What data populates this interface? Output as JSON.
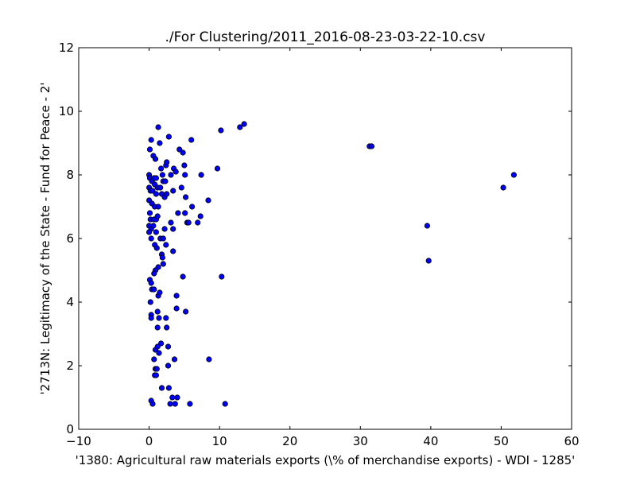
{
  "chart_data": {
    "type": "scatter",
    "title": "./For Clustering/2011_2016-08-23-03-22-10.csv",
    "xlabel": "'1380: Agricultural raw materials exports  (\\% of merchandise exports) - WDI - 1285'",
    "ylabel": "'2713N: Legitimacy of the State - Fund for Peace - 2'",
    "xlim": [
      -10,
      60
    ],
    "ylim": [
      0,
      12
    ],
    "xticks": [
      "−10",
      "0",
      "10",
      "20",
      "30",
      "40",
      "50",
      "60"
    ],
    "yticks": [
      "0",
      "2",
      "4",
      "6",
      "8",
      "10",
      "12"
    ],
    "grid": false,
    "legend": "none",
    "marker_color": "#0000ff",
    "marker_edge": "#000000",
    "points": [
      [
        1.3,
        9.5
      ],
      [
        0.3,
        9.1
      ],
      [
        1.5,
        9.0
      ],
      [
        2.8,
        9.2
      ],
      [
        0.1,
        8.8
      ],
      [
        0.6,
        8.6
      ],
      [
        0.9,
        8.5
      ],
      [
        4.3,
        8.8
      ],
      [
        4.8,
        8.7
      ],
      [
        6.0,
        9.1
      ],
      [
        10.2,
        9.4
      ],
      [
        12.9,
        9.5
      ],
      [
        13.5,
        9.6
      ],
      [
        31.3,
        8.9
      ],
      [
        31.6,
        8.9
      ],
      [
        50.3,
        7.6
      ],
      [
        51.8,
        8.0
      ],
      [
        39.5,
        6.4
      ],
      [
        39.7,
        5.3
      ],
      [
        0.0,
        8.0
      ],
      [
        0.1,
        7.9
      ],
      [
        0.4,
        7.8
      ],
      [
        0.7,
        7.9
      ],
      [
        1.0,
        7.9
      ],
      [
        1.7,
        8.2
      ],
      [
        1.9,
        8.0
      ],
      [
        2.4,
        8.3
      ],
      [
        2.5,
        8.4
      ],
      [
        3.5,
        8.2
      ],
      [
        3.8,
        8.1
      ],
      [
        5.0,
        8.3
      ],
      [
        5.1,
        8.0
      ],
      [
        7.4,
        8.0
      ],
      [
        9.7,
        8.2
      ],
      [
        0.0,
        7.6
      ],
      [
        0.2,
        7.5
      ],
      [
        0.5,
        7.5
      ],
      [
        0.8,
        7.7
      ],
      [
        1.2,
        7.6
      ],
      [
        1.6,
        7.6
      ],
      [
        2.0,
        7.8
      ],
      [
        2.3,
        7.8
      ],
      [
        3.1,
        8.0
      ],
      [
        0.0,
        7.2
      ],
      [
        0.4,
        7.1
      ],
      [
        0.8,
        7.0
      ],
      [
        1.0,
        7.4
      ],
      [
        1.3,
        7.0
      ],
      [
        1.8,
        7.4
      ],
      [
        2.2,
        7.3
      ],
      [
        2.5,
        7.4
      ],
      [
        3.4,
        7.5
      ],
      [
        4.6,
        7.6
      ],
      [
        5.2,
        7.3
      ],
      [
        6.1,
        7.0
      ],
      [
        8.4,
        7.2
      ],
      [
        0.1,
        6.8
      ],
      [
        0.2,
        6.6
      ],
      [
        0.7,
        6.6
      ],
      [
        1.0,
        6.6
      ],
      [
        1.2,
        6.7
      ],
      [
        0.0,
        6.4
      ],
      [
        0.3,
        6.3
      ],
      [
        0.6,
        6.4
      ],
      [
        1.0,
        6.2
      ],
      [
        2.2,
        6.3
      ],
      [
        3.1,
        6.5
      ],
      [
        3.4,
        6.3
      ],
      [
        4.1,
        6.8
      ],
      [
        5.4,
        6.5
      ],
      [
        5.6,
        6.5
      ],
      [
        7.3,
        6.7
      ],
      [
        6.9,
        6.5
      ],
      [
        5.1,
        6.8
      ],
      [
        0.0,
        6.2
      ],
      [
        0.3,
        6.0
      ],
      [
        0.8,
        5.8
      ],
      [
        1.1,
        5.7
      ],
      [
        1.6,
        6.0
      ],
      [
        2.0,
        6.0
      ],
      [
        2.4,
        5.8
      ],
      [
        3.4,
        5.6
      ],
      [
        1.8,
        5.5
      ],
      [
        1.9,
        5.4
      ],
      [
        1.3,
        5.1
      ],
      [
        2.0,
        5.2
      ],
      [
        0.9,
        5.0
      ],
      [
        0.7,
        4.9
      ],
      [
        0.1,
        4.7
      ],
      [
        0.3,
        4.6
      ],
      [
        4.8,
        4.8
      ],
      [
        10.3,
        4.8
      ],
      [
        0.4,
        4.4
      ],
      [
        0.7,
        4.4
      ],
      [
        1.3,
        4.2
      ],
      [
        1.5,
        4.3
      ],
      [
        3.9,
        4.2
      ],
      [
        0.2,
        4.0
      ],
      [
        0.3,
        3.6
      ],
      [
        0.3,
        3.5
      ],
      [
        1.2,
        3.7
      ],
      [
        1.4,
        3.5
      ],
      [
        2.4,
        3.5
      ],
      [
        1.2,
        3.2
      ],
      [
        2.5,
        3.2
      ],
      [
        3.9,
        3.8
      ],
      [
        5.2,
        3.7
      ],
      [
        1.7,
        2.7
      ],
      [
        0.9,
        2.5
      ],
      [
        1.2,
        2.6
      ],
      [
        1.4,
        2.4
      ],
      [
        2.7,
        2.6
      ],
      [
        0.7,
        2.2
      ],
      [
        3.6,
        2.2
      ],
      [
        8.5,
        2.2
      ],
      [
        2.7,
        2.0
      ],
      [
        0.9,
        1.9
      ],
      [
        1.1,
        1.9
      ],
      [
        0.8,
        1.7
      ],
      [
        1.0,
        1.7
      ],
      [
        1.8,
        1.3
      ],
      [
        2.8,
        1.3
      ],
      [
        3.3,
        1.0
      ],
      [
        4.0,
        1.0
      ],
      [
        0.3,
        0.9
      ],
      [
        0.5,
        0.8
      ],
      [
        3.0,
        0.8
      ],
      [
        3.7,
        0.8
      ],
      [
        5.8,
        0.8
      ],
      [
        10.8,
        0.8
      ]
    ]
  }
}
